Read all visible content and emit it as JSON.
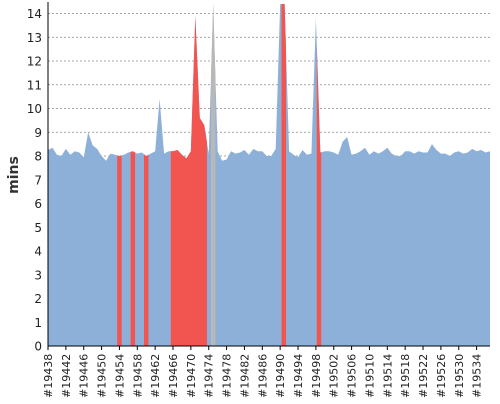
{
  "chart_data": {
    "type": "area",
    "ylabel": "mins",
    "xlabel": "",
    "ylim": [
      0,
      14.4
    ],
    "y_ticks": [
      "0",
      "1",
      "2",
      "3",
      "4",
      "5",
      "6",
      "7",
      "8",
      "9",
      "10",
      "11",
      "12",
      "13",
      "14"
    ],
    "x_tick_labels": [
      "#19438",
      "#19442",
      "#19446",
      "#19450",
      "#19454",
      "#19458",
      "#19462",
      "#19466",
      "#19470",
      "#19474",
      "#19478",
      "#19482",
      "#19486",
      "#19490",
      "#19494",
      "#19498",
      "#19502",
      "#19506",
      "#19510",
      "#19514",
      "#19518",
      "#19522",
      "#19526",
      "#19530",
      "#19534"
    ],
    "x_start": 19438,
    "x_end": 19537,
    "grid": "horizontal-dashed",
    "colors": {
      "normal": "#8db0d9",
      "failed": "#f2544f",
      "aborted": "#b8b8b8",
      "grid": "#888888",
      "axis": "#000000"
    },
    "points": [
      [
        19438,
        8.25
      ],
      [
        19439,
        8.35
      ],
      [
        19440,
        8.05
      ],
      [
        19441,
        8.0
      ],
      [
        19442,
        8.3
      ],
      [
        19443,
        8.05
      ],
      [
        19444,
        8.2
      ],
      [
        19445,
        8.15
      ],
      [
        19446,
        7.95
      ],
      [
        19447,
        9.0
      ],
      [
        19448,
        8.45
      ],
      [
        19449,
        8.3
      ],
      [
        19450,
        8.0
      ],
      [
        19451,
        7.8
      ],
      [
        19452,
        8.1
      ],
      [
        19453,
        8.05
      ],
      [
        19454,
        8.0
      ],
      [
        19455,
        8.05
      ],
      [
        19456,
        8.15
      ],
      [
        19457,
        8.2
      ],
      [
        19458,
        8.1
      ],
      [
        19459,
        8.15
      ],
      [
        19460,
        8.0
      ],
      [
        19461,
        8.1
      ],
      [
        19462,
        8.2
      ],
      [
        19463,
        10.4
      ],
      [
        19464,
        8.1
      ],
      [
        19465,
        8.2
      ],
      [
        19466,
        8.2
      ],
      [
        19467,
        8.25
      ],
      [
        19468,
        8.05
      ],
      [
        19469,
        7.9
      ],
      [
        19470,
        8.2
      ],
      [
        19471,
        13.9
      ],
      [
        19472,
        9.6
      ],
      [
        19473,
        9.3
      ],
      [
        19474,
        8.1
      ],
      [
        19475,
        14.4
      ],
      [
        19476,
        8.2
      ],
      [
        19477,
        7.8
      ],
      [
        19478,
        7.85
      ],
      [
        19479,
        8.2
      ],
      [
        19480,
        8.1
      ],
      [
        19481,
        8.15
      ],
      [
        19482,
        8.25
      ],
      [
        19483,
        8.05
      ],
      [
        19484,
        8.3
      ],
      [
        19485,
        8.2
      ],
      [
        19486,
        8.2
      ],
      [
        19487,
        8.0
      ],
      [
        19488,
        8.0
      ],
      [
        19489,
        8.3
      ],
      [
        19490,
        14.4
      ],
      [
        19491,
        14.4
      ],
      [
        19492,
        8.2
      ],
      [
        19493,
        8.05
      ],
      [
        19494,
        7.95
      ],
      [
        19495,
        8.25
      ],
      [
        19496,
        8.05
      ],
      [
        19497,
        8.1
      ],
      [
        19498,
        13.8
      ],
      [
        19499,
        8.15
      ],
      [
        19500,
        8.2
      ],
      [
        19501,
        8.2
      ],
      [
        19502,
        8.15
      ],
      [
        19503,
        8.05
      ],
      [
        19504,
        8.6
      ],
      [
        19505,
        8.8
      ],
      [
        19506,
        8.05
      ],
      [
        19507,
        8.1
      ],
      [
        19508,
        8.2
      ],
      [
        19509,
        8.35
      ],
      [
        19510,
        8.05
      ],
      [
        19511,
        8.2
      ],
      [
        19512,
        8.1
      ],
      [
        19513,
        8.2
      ],
      [
        19514,
        8.35
      ],
      [
        19515,
        8.1
      ],
      [
        19516,
        8.0
      ],
      [
        19517,
        8.0
      ],
      [
        19518,
        8.2
      ],
      [
        19519,
        8.2
      ],
      [
        19520,
        8.1
      ],
      [
        19521,
        8.2
      ],
      [
        19522,
        8.15
      ],
      [
        19523,
        8.15
      ],
      [
        19524,
        8.5
      ],
      [
        19525,
        8.25
      ],
      [
        19526,
        8.1
      ],
      [
        19527,
        8.1
      ],
      [
        19528,
        8.0
      ],
      [
        19529,
        8.15
      ],
      [
        19530,
        8.2
      ],
      [
        19531,
        8.1
      ],
      [
        19532,
        8.15
      ],
      [
        19533,
        8.3
      ],
      [
        19534,
        8.2
      ],
      [
        19535,
        8.25
      ],
      [
        19536,
        8.15
      ],
      [
        19537,
        8.2
      ]
    ],
    "failed_ranges": [
      [
        19453.5,
        19454.5
      ],
      [
        19456.5,
        19457.5
      ],
      [
        19459.5,
        19460.5
      ],
      [
        19465.5,
        19473.6
      ],
      [
        19490.3,
        19491.3
      ],
      [
        19498.2,
        19499.2
      ]
    ],
    "aborted_ranges": [
      [
        19474.5,
        19475.5
      ]
    ]
  }
}
